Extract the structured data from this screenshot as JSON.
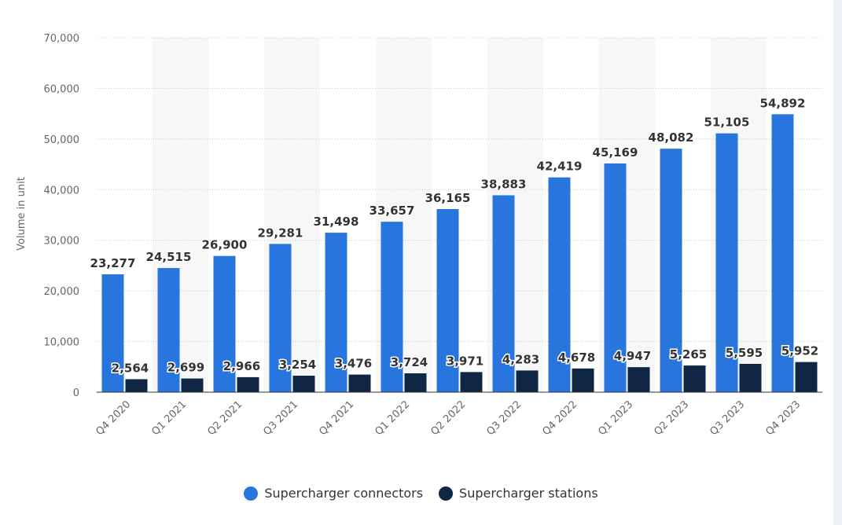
{
  "chart_data": {
    "type": "bar",
    "title": "",
    "xlabel": "",
    "ylabel": "Volume in unit",
    "ylim": [
      0,
      70000
    ],
    "yticks": [
      0,
      10000,
      20000,
      30000,
      40000,
      50000,
      60000,
      70000
    ],
    "ytick_labels": [
      "0",
      "10,000",
      "20,000",
      "30,000",
      "40,000",
      "50,000",
      "60,000",
      "70,000"
    ],
    "grid": true,
    "legend_position": "bottom-center",
    "categories": [
      "Q4 2020",
      "Q1 2021",
      "Q2 2021",
      "Q3 2021",
      "Q4 2021",
      "Q1 2022",
      "Q2 2022",
      "Q3 2022",
      "Q4 2022",
      "Q1 2023",
      "Q2 2023",
      "Q3 2023",
      "Q4 2023"
    ],
    "series": [
      {
        "name": "Supercharger connectors",
        "color": "#2876dd",
        "values": [
          23277,
          24515,
          26900,
          29281,
          31498,
          33657,
          36165,
          38883,
          42419,
          45169,
          48082,
          51105,
          54892
        ],
        "labels": [
          "23,277",
          "24,515",
          "26,900",
          "29,281",
          "31,498",
          "33,657",
          "36,165",
          "38,883",
          "42,419",
          "45,169",
          "48,082",
          "51,105",
          "54,892"
        ]
      },
      {
        "name": "Supercharger stations",
        "color": "#0f2744",
        "values": [
          2564,
          2699,
          2966,
          3254,
          3476,
          3724,
          3971,
          4283,
          4678,
          4947,
          5265,
          5595,
          5952
        ],
        "labels": [
          "2,564",
          "2,699",
          "2,966",
          "3,254",
          "3,476",
          "3,724",
          "3,971",
          "4,283",
          "4,678",
          "4,947",
          "5,265",
          "5,595",
          "5,952"
        ]
      }
    ]
  }
}
